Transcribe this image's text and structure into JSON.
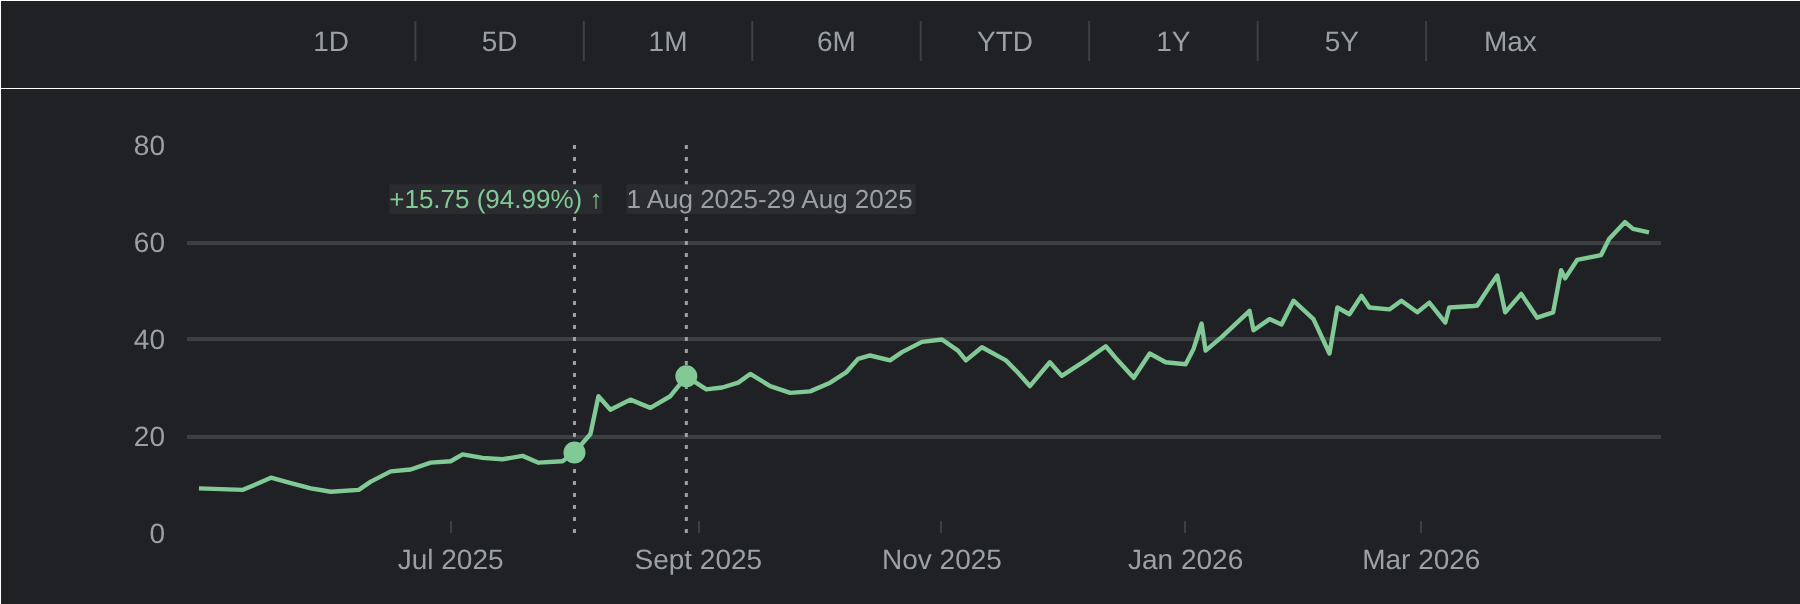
{
  "chart_data": {
    "type": "line",
    "x": [
      "2025-04-29",
      "2025-05-10",
      "2025-05-14",
      "2025-05-17",
      "2025-05-22",
      "2025-05-27",
      "2025-06-01",
      "2025-06-08",
      "2025-06-11",
      "2025-06-16",
      "2025-06-21",
      "2025-06-26",
      "2025-07-01",
      "2025-07-04",
      "2025-07-09",
      "2025-07-14",
      "2025-07-19",
      "2025-07-23",
      "2025-07-29",
      "2025-08-01",
      "2025-08-05",
      "2025-08-07",
      "2025-08-10",
      "2025-08-15",
      "2025-08-20",
      "2025-08-25",
      "2025-08-29",
      "2025-09-03",
      "2025-09-07",
      "2025-09-11",
      "2025-09-14",
      "2025-09-19",
      "2025-09-24",
      "2025-09-29",
      "2025-10-04",
      "2025-10-08",
      "2025-10-11",
      "2025-10-14",
      "2025-10-19",
      "2025-10-22",
      "2025-10-27",
      "2025-11-01",
      "2025-11-05",
      "2025-11-07",
      "2025-11-11",
      "2025-11-17",
      "2025-11-20",
      "2025-11-23",
      "2025-11-28",
      "2025-12-01",
      "2025-12-07",
      "2025-12-12",
      "2025-12-15",
      "2025-12-19",
      "2025-12-23",
      "2025-12-27",
      "2026-01-01",
      "2026-01-03",
      "2026-01-05",
      "2026-01-06",
      "2026-01-10",
      "2026-01-17",
      "2026-01-18",
      "2026-01-22",
      "2026-01-25",
      "2026-01-28",
      "2026-02-02",
      "2026-02-06",
      "2026-02-08",
      "2026-02-11",
      "2026-02-14",
      "2026-02-16",
      "2026-02-21",
      "2026-02-24",
      "2026-02-28",
      "2026-03-03",
      "2026-03-07",
      "2026-03-08",
      "2026-03-14",
      "2026-03-15",
      "2026-03-18",
      "2026-03-20",
      "2026-03-22",
      "2026-03-26",
      "2026-03-30",
      "2026-04-03",
      "2026-04-05",
      "2026-04-06",
      "2026-04-09",
      "2026-04-15",
      "2026-04-17",
      "2026-04-21",
      "2026-04-23",
      "2026-04-27"
    ],
    "series": [
      {
        "color": "#81c995",
        "values": [
          9.2,
          8.9,
          10.3,
          11.4,
          10.3,
          9.2,
          8.5,
          8.9,
          10.6,
          12.7,
          13.1,
          14.5,
          14.8,
          16.2,
          15.5,
          15.2,
          15.9,
          14.5,
          14.8,
          16.6,
          20.4,
          28.2,
          25.4,
          27.5,
          25.8,
          28.2,
          32.3,
          29.6,
          30.0,
          31.0,
          32.8,
          30.3,
          28.9,
          29.2,
          31.0,
          33.1,
          35.9,
          36.6,
          35.6,
          37.3,
          39.4,
          39.9,
          37.6,
          35.6,
          38.3,
          35.6,
          33.1,
          30.3,
          35.2,
          32.4,
          35.6,
          38.5,
          35.6,
          32.0,
          37.0,
          35.2,
          34.8,
          38.0,
          43.2,
          37.6,
          40.4,
          45.8,
          41.8,
          44.1,
          43.0,
          47.9,
          44.1,
          37.0,
          46.5,
          45.1,
          48.9,
          46.5,
          46.1,
          47.9,
          45.5,
          47.5,
          43.4,
          46.5,
          46.8,
          46.9,
          50.7,
          53.1,
          45.5,
          49.3,
          44.4,
          45.5,
          54.2,
          52.5,
          56.3,
          57.3,
          60.6,
          64.1,
          62.7,
          62.0
        ]
      },
      {
        "type": "scatter",
        "color": "#81c995",
        "x": [
          "2025-08-01",
          "2025-08-29"
        ],
        "values": [
          16.6,
          32.3
        ]
      }
    ],
    "xlim": [
      "2025-04-26",
      "2026-04-30"
    ],
    "xticks": [
      {
        "value": "2025-07-01",
        "label": "Jul 2025"
      },
      {
        "value": "2025-09-01",
        "label": "Sept 2025"
      },
      {
        "value": "2025-11-01",
        "label": "Nov 2025"
      },
      {
        "value": "2026-01-01",
        "label": "Jan 2026"
      },
      {
        "value": "2026-03-01",
        "label": "Mar 2026"
      }
    ],
    "ylim": [
      0,
      80
    ],
    "yticks": [
      0,
      20,
      40,
      60,
      80
    ],
    "grid": "y",
    "line_style": "solid",
    "ref_lines": [
      {
        "axis": "x",
        "value": "2025-08-01",
        "color": "#9aa0a6",
        "line_style": "dotted"
      },
      {
        "axis": "x",
        "value": "2025-08-29",
        "color": "#9aa0a6",
        "line_style": "dotted"
      }
    ],
    "annotations": [
      "1D",
      "5D",
      "1M",
      "6M",
      "YTD",
      "1Y",
      "5Y",
      "Max",
      "+15.75 (94.99%) ↑",
      "1 Aug 2025-29 Aug 2025"
    ]
  }
}
